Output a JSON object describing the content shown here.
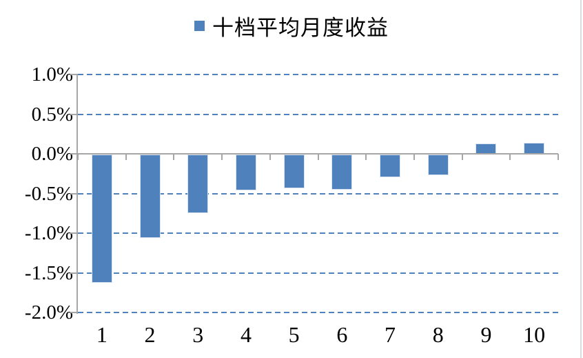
{
  "chart_data": {
    "type": "bar",
    "title": "十档平均月度收益",
    "legend": [
      {
        "label": "十档平均月度收益",
        "color": "#4f81bd"
      }
    ],
    "legend_position": "top-center",
    "categories": [
      "1",
      "2",
      "3",
      "4",
      "5",
      "6",
      "7",
      "8",
      "9",
      "10"
    ],
    "series": [
      {
        "name": "十档平均月度收益",
        "values": [
          -1.62,
          -1.05,
          -0.74,
          -0.45,
          -0.43,
          -0.44,
          -0.29,
          -0.26,
          0.14,
          0.15
        ]
      }
    ],
    "value_unit": "%",
    "xlabel": "",
    "ylabel": "",
    "ylim": [
      -2.0,
      1.0
    ],
    "ytick_step": 0.5,
    "ytick_labels": [
      "1.0%",
      "0.5%",
      "0.0%",
      "-0.5%",
      "-1.0%",
      "-1.5%",
      "-2.0%"
    ],
    "grid": "horizontal-dashed"
  },
  "colors": {
    "bar": "#4f81bd",
    "bar_border": "#dbe5f1",
    "gridline": "#4f81bd",
    "axis": "#a6a6a6",
    "text": "#000000",
    "background": "#ffffff",
    "page_edge_line": "#d7dde2"
  }
}
